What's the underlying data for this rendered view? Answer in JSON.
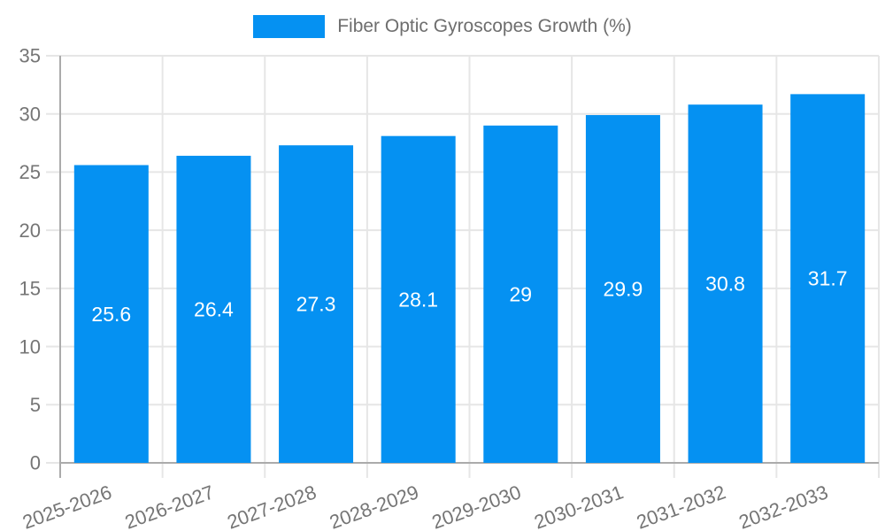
{
  "chart_data": {
    "type": "bar",
    "series_name": "Fiber Optic Gyroscopes Growth (%)",
    "categories": [
      "2025-2026",
      "2026-2027",
      "2027-2028",
      "2028-2029",
      "2029-2030",
      "2030-2031",
      "2031-2032",
      "2032-2033"
    ],
    "values": [
      25.6,
      26.4,
      27.3,
      28.1,
      29,
      29.9,
      30.8,
      31.7
    ],
    "title": "",
    "xlabel": "",
    "ylabel": "",
    "ylim": [
      0,
      35
    ],
    "ytick_step": 5,
    "yticks": [
      0,
      5,
      10,
      15,
      20,
      25,
      30,
      35
    ],
    "grid": true,
    "legend_position": "top",
    "x_label_rotation_deg": -20,
    "colors": {
      "bar": "#0591f2",
      "value_label": "#ffffff",
      "axis_text": "#757575",
      "legend_text": "#6e6e6e",
      "grid": "#e6e6e6",
      "tick": "#e6e6e6",
      "axis_line": "#ababab",
      "background": "#ffffff"
    }
  }
}
